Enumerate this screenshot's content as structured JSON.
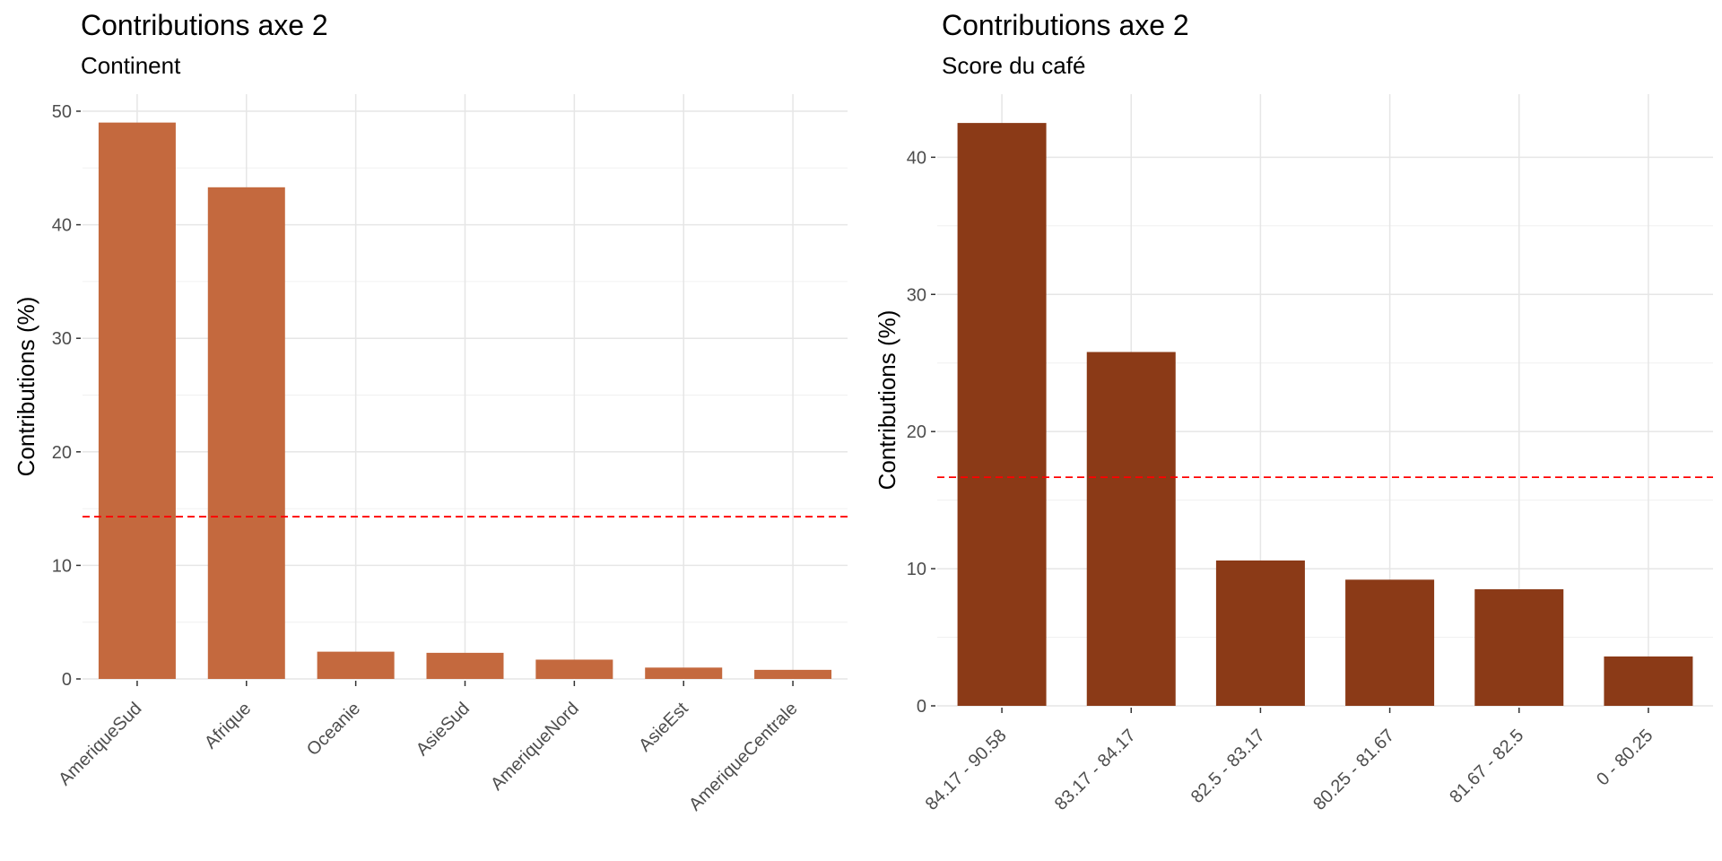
{
  "chart_data": [
    {
      "type": "bar",
      "title": "Contributions axe 2",
      "subtitle": "Continent",
      "xlabel": "",
      "ylabel": "Contributions (%)",
      "categories": [
        "AmeriqueSud",
        "Afrique",
        "Oceanie",
        "AsieSud",
        "AmeriqueNord",
        "AsieEst",
        "AmeriqueCentrale"
      ],
      "values": [
        49.0,
        43.3,
        2.4,
        2.3,
        1.7,
        1.0,
        0.8
      ],
      "ylim": [
        0,
        51.5
      ],
      "yticks": [
        0,
        10,
        20,
        30,
        40,
        50
      ],
      "reference_line": 14.29,
      "bar_color": "#C4693E",
      "reference_color": "#FF0000",
      "grid": true,
      "legend": "none"
    },
    {
      "type": "bar",
      "title": "Contributions axe 2",
      "subtitle": "Score du café",
      "xlabel": "",
      "ylabel": "Contributions (%)",
      "categories": [
        "84.17 - 90.58",
        "83.17 - 84.17",
        "82.5 - 83.17",
        "80.25 - 81.67",
        "81.67 - 82.5",
        "0 - 80.25"
      ],
      "values": [
        42.5,
        25.8,
        10.6,
        9.2,
        8.5,
        3.6
      ],
      "ylim": [
        0,
        44.6
      ],
      "yticks": [
        0,
        10,
        20,
        30,
        40
      ],
      "reference_line": 16.67,
      "bar_color": "#8B3A17",
      "reference_color": "#FF0000",
      "grid": true,
      "legend": "none"
    }
  ]
}
